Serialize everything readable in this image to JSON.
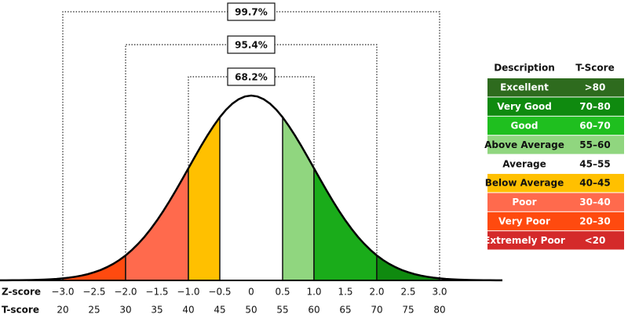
{
  "axis": {
    "z_label": "Z-score",
    "t_label": "T-score",
    "z_ticks": [
      {
        "value": -3,
        "label": "−3.0"
      },
      {
        "value": -2.5,
        "label": "−2.5"
      },
      {
        "value": -2,
        "label": "−2.0"
      },
      {
        "value": -1.5,
        "label": "−1.5"
      },
      {
        "value": -1,
        "label": "−1.0"
      },
      {
        "value": -0.5,
        "label": "−0.5"
      },
      0,
      0.5,
      {
        "value": 1,
        "label": "1.0"
      },
      1.5,
      {
        "value": 2,
        "label": "2.0"
      },
      2.5,
      {
        "value": 3,
        "label": "3.0"
      }
    ],
    "t_ticks": [
      20,
      25,
      30,
      35,
      40,
      45,
      50,
      55,
      60,
      65,
      70,
      75,
      80
    ]
  },
  "brackets": [
    {
      "label": "99.7%",
      "z": 3
    },
    {
      "label": "95.4%",
      "z": 2
    },
    {
      "label": "68.2%",
      "z": 1
    }
  ],
  "regions": [
    {
      "from": -3,
      "to": -2,
      "color": "#ff4a0f"
    },
    {
      "from": -2,
      "to": -1,
      "color": "#ff6a4d"
    },
    {
      "from": -1,
      "to": -0.5,
      "color": "#ffc000"
    },
    {
      "from": 0.5,
      "to": 1,
      "color": "#90d67f"
    },
    {
      "from": 1,
      "to": 2,
      "color": "#1aac1a"
    },
    {
      "from": 2,
      "to": 3,
      "color": "#0f8a0f"
    }
  ],
  "table": {
    "header": [
      "Description",
      "T-Score"
    ],
    "rows": [
      {
        "description": "Excellent",
        "t_score": ">80",
        "color": "#2e6b1e",
        "text_color": "#ffffff"
      },
      {
        "description": "Very Good",
        "t_score": "70–80",
        "color": "#0f8a0f",
        "text_color": "#ffffff"
      },
      {
        "description": "Good",
        "t_score": "60–70",
        "color": "#1fbf1f",
        "text_color": "#ffffff"
      },
      {
        "description": "Above Average",
        "t_score": "55–60",
        "color": "#90d67f",
        "text_color": "#111111"
      },
      {
        "description": "Average",
        "t_score": "45–55",
        "color": "#ffffff",
        "text_color": "#111111"
      },
      {
        "description": "Below Average",
        "t_score": "40–45",
        "color": "#ffc000",
        "text_color": "#111111"
      },
      {
        "description": "Poor",
        "t_score": "30–40",
        "color": "#ff6a4d",
        "text_color": "#ffffff"
      },
      {
        "description": "Very Poor",
        "t_score": "20–30",
        "color": "#ff4a0f",
        "text_color": "#ffffff"
      },
      {
        "description": "Extremely Poor",
        "t_score": "<20",
        "color": "#d42a2a",
        "text_color": "#ffffff"
      }
    ]
  }
}
